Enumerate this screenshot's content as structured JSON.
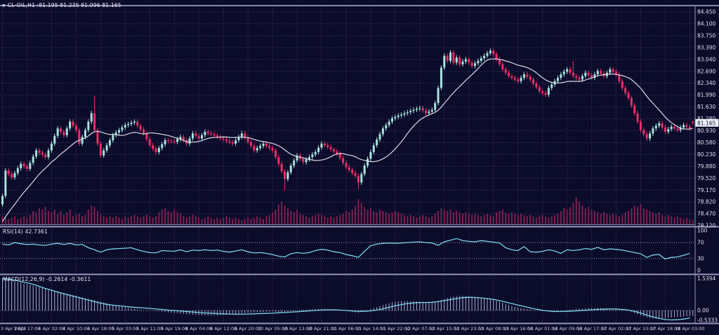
{
  "window": {
    "title_marker": "▼",
    "title": "CL-OIL,H1 :81.195 81.235 81.096 81.165"
  },
  "colors": {
    "background": "#0b0b2a",
    "bull_candle": "#a8e3dc",
    "bear_candle": "#ee2d68",
    "ma_line": "#d9dae6",
    "indicator_line": "#79d4e8",
    "macd_histogram": "#a9aed2",
    "volume_bar": "#7c2150",
    "grid_dot": "#3c3c74",
    "level_dot": "#9b9dc0",
    "separator": "#9597bd",
    "axis_text": "#dfe0ec",
    "time_text": "#cdd0e2",
    "price_tag_bg": "#eceef5",
    "price_tag_text": "#14143a"
  },
  "chart_data": [
    {
      "id": "price-panel",
      "type": "candlestick",
      "symbol": "CL-OIL",
      "timeframe": "H1",
      "title_ohlc": {
        "open": "81.195",
        "high": "81.235",
        "low": "81.096",
        "close": "81.165"
      },
      "current_price": "81.165",
      "ylim": [
        78.12,
        84.45
      ],
      "y_ticks": [
        "84.450",
        "84.100",
        "83.750",
        "83.390",
        "83.040",
        "82.690",
        "82.340",
        "81.990",
        "81.630",
        "81.280",
        "80.930",
        "80.580",
        "80.230",
        "79.880",
        "79.520",
        "79.170",
        "78.820",
        "78.470",
        "78.120"
      ],
      "x_labels": [
        "3 Apr 2023",
        "3 Apr 17:00",
        "4 Apr 02:00",
        "4 Apr 10:00",
        "4 Apr 18:00",
        "5 Apr 03:00",
        "5 Apr 11:00",
        "5 Apr 19:00",
        "6 Apr 04:00",
        "6 Apr 12:00",
        "6 Apr 20:00",
        "10 Apr 05:00",
        "10 Apr 13:00",
        "10 Apr 21:00",
        "11 Apr 06:00",
        "11 Apr 14:00",
        "11 Apr 22:00",
        "12 Apr 07:00",
        "12 Apr 15:00",
        "12 Apr 23:00",
        "13 Apr 08:00",
        "13 Apr 16:00",
        "14 Apr 01:00",
        "14 Apr 09:00",
        "14 Apr 17:00",
        "17 Apr 02:00",
        "17 Apr 10:00",
        "17 Apr 18:00",
        "18 Apr 03:00"
      ],
      "bars_per_label": 8,
      "visible_bars": 226,
      "closes": [
        79.0,
        79.75,
        79.65,
        79.55,
        79.68,
        79.82,
        79.95,
        79.88,
        79.8,
        79.98,
        80.17,
        80.35,
        80.28,
        80.22,
        80.15,
        80.35,
        80.55,
        80.78,
        81.0,
        80.9,
        80.8,
        81.0,
        81.2,
        81.08,
        80.95,
        80.55,
        80.75,
        80.95,
        81.2,
        81.45,
        80.95,
        80.55,
        80.2,
        80.35,
        80.5,
        80.65,
        80.8,
        80.88,
        80.95,
        81.03,
        81.1,
        81.13,
        81.17,
        81.2,
        81.08,
        80.97,
        80.85,
        80.68,
        80.5,
        80.4,
        80.3,
        80.42,
        80.53,
        80.65,
        80.63,
        80.62,
        80.6,
        80.68,
        80.75,
        80.65,
        80.55,
        80.7,
        80.85,
        80.78,
        80.7,
        80.8,
        80.9,
        80.86,
        80.83,
        80.79,
        80.75,
        80.71,
        80.67,
        80.63,
        80.59,
        80.55,
        80.65,
        80.75,
        80.85,
        80.73,
        80.6,
        80.48,
        80.35,
        80.42,
        80.48,
        80.55,
        80.48,
        80.42,
        80.35,
        80.15,
        79.95,
        79.73,
        79.5,
        79.7,
        79.9,
        80.05,
        80.2,
        80.1,
        80.0,
        80.08,
        80.15,
        80.23,
        80.3,
        80.43,
        80.55,
        80.5,
        80.45,
        80.38,
        80.32,
        80.25,
        80.12,
        79.98,
        79.85,
        79.77,
        79.68,
        79.6,
        79.4,
        79.65,
        79.9,
        80.1,
        80.3,
        80.5,
        80.67,
        80.83,
        81.0,
        81.1,
        81.2,
        81.3,
        81.34,
        81.38,
        81.41,
        81.45,
        81.48,
        81.52,
        81.55,
        81.58,
        81.6,
        81.53,
        81.45,
        81.5,
        81.55,
        81.75,
        82.2,
        82.8,
        83.15,
        83.0,
        83.25,
        82.95,
        83.1,
        82.9,
        82.98,
        83.05,
        82.95,
        82.85,
        82.93,
        83.0,
        83.08,
        83.15,
        83.23,
        83.3,
        83.2,
        83.05,
        82.9,
        82.75,
        82.65,
        82.55,
        82.5,
        82.45,
        82.4,
        82.5,
        82.6,
        82.53,
        82.45,
        82.33,
        82.22,
        82.1,
        82.05,
        82.0,
        82.2,
        82.3,
        82.4,
        82.5,
        82.6,
        82.68,
        82.75,
        82.65,
        82.55,
        82.5,
        82.45,
        82.55,
        82.65,
        82.58,
        82.5,
        82.6,
        82.7,
        82.63,
        82.55,
        82.65,
        82.75,
        82.68,
        82.6,
        82.4,
        82.2,
        82.05,
        81.9,
        81.68,
        81.45,
        81.2,
        80.95,
        80.83,
        80.7,
        80.85,
        81.0,
        81.08,
        81.15,
        81.03,
        80.9,
        80.98,
        81.05,
        81.0,
        80.95,
        81.03,
        81.1,
        81.05,
        81.0,
        81.165
      ],
      "wick_overrides": {
        "30": {
          "high": 81.95
        },
        "92": {
          "low": 79.17
        },
        "116": {
          "low": 79.2
        },
        "186": {
          "high": 83.0
        }
      },
      "last_bar": {
        "open": 81.195,
        "high": 81.235,
        "low": 81.096,
        "close": 81.165
      },
      "ma_period": 16,
      "volume": [
        0.3,
        0.25,
        0.2,
        0.25,
        0.3,
        0.2,
        0.25,
        0.3,
        0.25,
        0.35,
        0.5,
        0.45,
        0.6,
        0.55,
        0.65,
        0.5,
        0.45,
        0.55,
        0.4,
        0.5,
        0.35,
        0.45,
        0.55,
        0.3,
        0.35,
        0.4,
        0.3,
        0.35,
        0.55,
        0.7,
        0.65,
        0.5,
        0.35,
        0.3,
        0.25,
        0.3,
        0.25,
        0.3,
        0.25,
        0.2,
        0.3,
        0.25,
        0.3,
        0.35,
        0.3,
        0.25,
        0.3,
        0.35,
        0.3,
        0.25,
        0.3,
        0.45,
        0.55,
        0.6,
        0.5,
        0.45,
        0.55,
        0.45,
        0.4,
        0.3,
        0.25,
        0.3,
        0.35,
        0.3,
        0.25,
        0.2,
        0.25,
        0.3,
        0.25,
        0.2,
        0.25,
        0.2,
        0.25,
        0.3,
        0.25,
        0.2,
        0.25,
        0.2,
        0.15,
        0.2,
        0.25,
        0.2,
        0.25,
        0.3,
        0.25,
        0.2,
        0.3,
        0.35,
        0.45,
        0.55,
        0.75,
        0.85,
        0.7,
        0.6,
        0.5,
        0.45,
        0.55,
        0.4,
        0.35,
        0.3,
        0.25,
        0.3,
        0.35,
        0.4,
        0.35,
        0.3,
        0.25,
        0.3,
        0.25,
        0.3,
        0.35,
        0.4,
        0.5,
        0.45,
        0.55,
        0.7,
        0.95,
        0.8,
        0.65,
        0.55,
        0.6,
        0.5,
        0.45,
        0.55,
        0.5,
        0.45,
        0.4,
        0.45,
        0.5,
        0.45,
        0.4,
        0.35,
        0.3,
        0.35,
        0.3,
        0.25,
        0.3,
        0.35,
        0.3,
        0.25,
        0.3,
        0.4,
        0.5,
        0.6,
        0.55,
        0.5,
        0.55,
        0.45,
        0.5,
        0.45,
        0.4,
        0.45,
        0.4,
        0.35,
        0.4,
        0.35,
        0.3,
        0.35,
        0.4,
        0.35,
        0.3,
        0.45,
        0.5,
        0.55,
        0.45,
        0.4,
        0.45,
        0.4,
        0.35,
        0.4,
        0.35,
        0.3,
        0.35,
        0.3,
        0.25,
        0.3,
        0.35,
        0.3,
        0.25,
        0.3,
        0.35,
        0.4,
        0.5,
        0.6,
        0.55,
        0.65,
        0.8,
        1.0,
        0.85,
        0.7,
        0.6,
        0.65,
        0.55,
        0.5,
        0.45,
        0.4,
        0.45,
        0.4,
        0.35,
        0.4,
        0.35,
        0.3,
        0.35,
        0.45,
        0.5,
        0.6,
        0.7,
        0.65,
        0.75,
        0.6,
        0.55,
        0.5,
        0.45,
        0.4,
        0.45,
        0.35,
        0.3,
        0.35,
        0.3,
        0.25,
        0.3,
        0.25,
        0.2,
        0.25,
        0.2,
        0.15
      ]
    },
    {
      "id": "rsi-panel",
      "type": "line",
      "label": "RSI(14) 42.7361",
      "last_value": "42.7361",
      "ylim": [
        0,
        100
      ],
      "levels": [
        "100",
        "70",
        "30",
        "0"
      ],
      "step": 2,
      "values": [
        66,
        64,
        70,
        67,
        65,
        66,
        64,
        63,
        66,
        68,
        65,
        68,
        64,
        65,
        57,
        52,
        46,
        52,
        54,
        55,
        56,
        57,
        52,
        48,
        45,
        44,
        50,
        49,
        48,
        52,
        47,
        51,
        50,
        52,
        50,
        51,
        48,
        46,
        49,
        52,
        47,
        44,
        45,
        43,
        40,
        36,
        34,
        42,
        45,
        43,
        45,
        50,
        53,
        51,
        47,
        45,
        40,
        37,
        33,
        48,
        62,
        66,
        68,
        69,
        68,
        69,
        70,
        71,
        72,
        70,
        69,
        63,
        72,
        76,
        80,
        75,
        73,
        72,
        75,
        73,
        71,
        69,
        57,
        52,
        50,
        60,
        47,
        46,
        48,
        52,
        49,
        43,
        52,
        50,
        52,
        55,
        53,
        58,
        52,
        54,
        53,
        51,
        48,
        45,
        42,
        33,
        39,
        40,
        29,
        33,
        34,
        38,
        42.74
      ]
    },
    {
      "id": "macd-panel",
      "type": "histogram+line",
      "label": "MACD(12,26,9) -0.2614 -0.3611",
      "macd_value": "-0.2614",
      "signal_value": "-0.3611",
      "ylim": [
        -0.5333,
        1.5394
      ],
      "y_ticks": [
        "1.5394",
        "0.00",
        "-0.5333"
      ],
      "signal_step": 2,
      "hist": [
        1.54,
        1.5,
        1.47,
        1.43,
        1.4,
        1.36,
        1.33,
        1.29,
        1.26,
        1.22,
        1.19,
        1.15,
        1.12,
        1.08,
        1.05,
        1.01,
        0.98,
        0.94,
        0.91,
        0.87,
        0.84,
        0.8,
        0.77,
        0.73,
        0.7,
        0.66,
        0.63,
        0.59,
        0.56,
        0.52,
        0.49,
        0.45,
        0.42,
        0.38,
        0.35,
        0.31,
        0.28,
        0.24,
        0.21,
        0.17,
        0.14,
        0.12,
        0.09,
        0.07,
        0.05,
        0.03,
        0.02,
        0.01,
        0.0,
        -0.01,
        -0.03,
        -0.04,
        -0.06,
        -0.07,
        -0.09,
        -0.1,
        -0.12,
        -0.13,
        -0.15,
        -0.16,
        -0.18,
        -0.19,
        -0.2,
        -0.21,
        -0.22,
        -0.23,
        -0.23,
        -0.24,
        -0.24,
        -0.23,
        -0.23,
        -0.22,
        -0.21,
        -0.2,
        -0.19,
        -0.18,
        -0.17,
        -0.16,
        -0.14,
        -0.13,
        -0.12,
        -0.11,
        -0.1,
        -0.09,
        -0.08,
        -0.07,
        -0.06,
        -0.05,
        -0.05,
        -0.06,
        -0.07,
        -0.08,
        -0.08,
        -0.07,
        -0.05,
        -0.03,
        -0.01,
        0.01,
        0.03,
        0.04,
        0.05,
        0.06,
        0.07,
        0.08,
        0.08,
        0.08,
        0.07,
        0.07,
        0.06,
        0.05,
        0.03,
        0.01,
        -0.02,
        -0.05,
        -0.07,
        -0.09,
        -0.11,
        -0.08,
        -0.04,
        0.01,
        0.06,
        0.11,
        0.16,
        0.21,
        0.26,
        0.31,
        0.35,
        0.39,
        0.42,
        0.44,
        0.45,
        0.45,
        0.45,
        0.44,
        0.44,
        0.43,
        0.42,
        0.41,
        0.4,
        0.4,
        0.41,
        0.43,
        0.46,
        0.5,
        0.55,
        0.59,
        0.63,
        0.66,
        0.68,
        0.69,
        0.7,
        0.69,
        0.68,
        0.66,
        0.64,
        0.62,
        0.6,
        0.58,
        0.56,
        0.53,
        0.5,
        0.46,
        0.42,
        0.37,
        0.32,
        0.27,
        0.22,
        0.18,
        0.14,
        0.11,
        0.09,
        0.07,
        0.05,
        0.03,
        0.01,
        -0.01,
        -0.03,
        -0.04,
        -0.05,
        -0.05,
        -0.04,
        -0.03,
        -0.02,
        0.0,
        0.02,
        0.04,
        0.05,
        0.07,
        0.08,
        0.09,
        0.1,
        0.11,
        0.11,
        0.12,
        0.12,
        0.12,
        0.11,
        0.11,
        0.1,
        0.1,
        0.09,
        0.07,
        0.05,
        0.02,
        -0.02,
        -0.07,
        -0.12,
        -0.18,
        -0.24,
        -0.29,
        -0.33,
        -0.36,
        -0.38,
        -0.39,
        -0.39,
        -0.38,
        -0.37,
        -0.35,
        -0.34,
        -0.32,
        -0.31,
        -0.3,
        -0.29,
        -0.28,
        -0.27,
        -0.2614
      ],
      "signal": [
        1.52,
        1.5,
        1.45,
        1.38,
        1.32,
        1.25,
        1.15,
        1.05,
        0.97,
        0.88,
        0.8,
        0.72,
        0.65,
        0.57,
        0.5,
        0.42,
        0.35,
        0.29,
        0.25,
        0.22,
        0.19,
        0.16,
        0.14,
        0.12,
        0.1,
        0.07,
        0.05,
        0.02,
        0.0,
        -0.02,
        -0.05,
        -0.07,
        -0.1,
        -0.12,
        -0.13,
        -0.15,
        -0.16,
        -0.17,
        -0.18,
        -0.18,
        -0.17,
        -0.16,
        -0.15,
        -0.14,
        -0.13,
        -0.11,
        -0.1,
        -0.08,
        -0.06,
        -0.04,
        -0.02,
        0.0,
        0.02,
        0.03,
        0.03,
        0.02,
        0.0,
        -0.02,
        -0.04,
        -0.04,
        -0.02,
        0.02,
        0.08,
        0.15,
        0.22,
        0.28,
        0.33,
        0.36,
        0.38,
        0.38,
        0.39,
        0.42,
        0.47,
        0.52,
        0.57,
        0.61,
        0.63,
        0.62,
        0.6,
        0.57,
        0.53,
        0.47,
        0.4,
        0.33,
        0.26,
        0.19,
        0.12,
        0.06,
        0.01,
        -0.03,
        -0.05,
        -0.05,
        -0.04,
        -0.03,
        -0.01,
        0.01,
        0.03,
        0.05,
        0.06,
        0.07,
        0.07,
        0.05,
        0.02,
        -0.04,
        -0.12,
        -0.22,
        -0.31,
        -0.38,
        -0.43,
        -0.45,
        -0.44,
        -0.41,
        -0.3611
      ]
    }
  ]
}
